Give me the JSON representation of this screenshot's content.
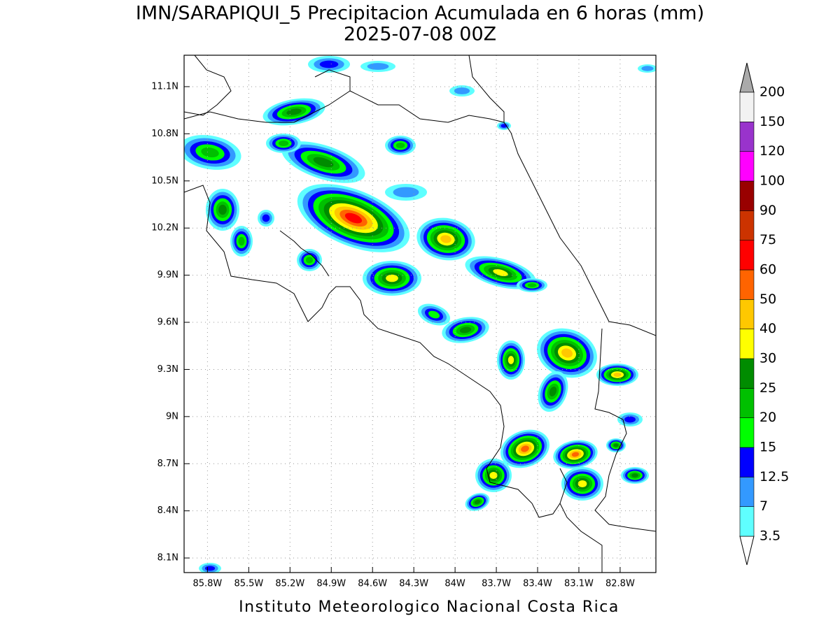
{
  "map": {
    "title": "IMN/SARAPIQUI_5 Precipitacion Acumulada en 6 horas (mm)",
    "subtitle": "2025-07-08 00Z",
    "footer": "Instituto Meteorologico Nacional Costa Rica",
    "lonlim": [
      -85.97,
      -82.54
    ],
    "latlim": [
      8.007,
      11.3
    ],
    "lon_ticks": [
      {
        "value": -85.8,
        "label": "85.8W"
      },
      {
        "value": -85.5,
        "label": "85.5W"
      },
      {
        "value": -85.2,
        "label": "85.2W"
      },
      {
        "value": -84.9,
        "label": "84.9W"
      },
      {
        "value": -84.6,
        "label": "84.6W"
      },
      {
        "value": -84.3,
        "label": "84.3W"
      },
      {
        "value": -84,
        "label": "84W"
      },
      {
        "value": -83.7,
        "label": "83.7W"
      },
      {
        "value": -83.4,
        "label": "83.4W"
      },
      {
        "value": -83.1,
        "label": "83.1W"
      },
      {
        "value": -82.8,
        "label": "82.8W"
      }
    ],
    "lat_ticks": [
      {
        "value": 8.1,
        "label": "8.1N"
      },
      {
        "value": 8.4,
        "label": "8.4N"
      },
      {
        "value": 8.7,
        "label": "8.7N"
      },
      {
        "value": 9,
        "label": "9N"
      },
      {
        "value": 9.3,
        "label": "9.3N"
      },
      {
        "value": 9.6,
        "label": "9.6N"
      },
      {
        "value": 9.9,
        "label": "9.9N"
      },
      {
        "value": 10.2,
        "label": "10.2N"
      },
      {
        "value": 10.5,
        "label": "10.5N"
      },
      {
        "value": 10.8,
        "label": "10.8N"
      },
      {
        "value": 11.1,
        "label": "11.1N"
      }
    ],
    "grid": true,
    "colorbar": {
      "levels": [
        3.5,
        7,
        12.5,
        15,
        20,
        25,
        30,
        40,
        50,
        60,
        75,
        90,
        100,
        120,
        150,
        200
      ],
      "colors": [
        "#5fffff",
        "#3399ff",
        "#0000ff",
        "#00ff00",
        "#00c000",
        "#008c00",
        "#ffff00",
        "#ffc800",
        "#ff6400",
        "#ff0000",
        "#cc3300",
        "#990000",
        "#ff00ff",
        "#9933cc",
        "#f2f2f2"
      ],
      "under_color": "#ffffff",
      "over_color": "#aaaaaa"
    }
  }
}
